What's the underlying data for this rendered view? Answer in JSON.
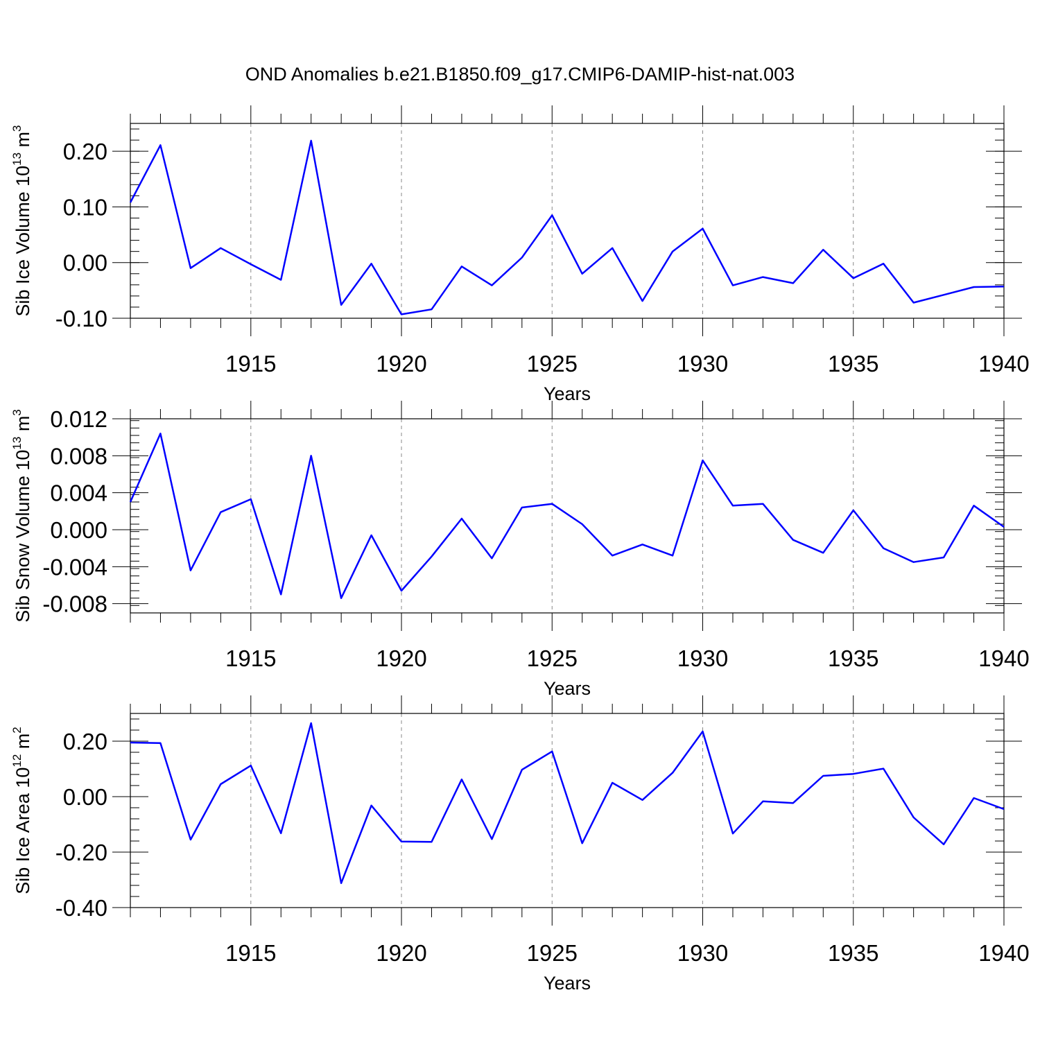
{
  "title": "OND Anomalies b.e21.B1850.f09_g17.CMIP6-DAMIP-hist-nat.003",
  "line_color": "#0000ff",
  "chart_data": [
    {
      "type": "line",
      "ylabel": {
        "main": "Sib Ice Volume 10",
        "exp": "13",
        "unit": " m",
        "unit_exp": "3"
      },
      "xlabel": "Years",
      "xlim": [
        1911,
        1940
      ],
      "ylim": [
        -0.1,
        0.25
      ],
      "yticks": [
        -0.1,
        0.0,
        0.1,
        0.2
      ],
      "ytick_labels": [
        "-0.10",
        "0.00",
        "0.10",
        "0.20"
      ],
      "xticks": [
        1915,
        1920,
        1925,
        1930,
        1935,
        1940
      ],
      "xtick_labels": [
        "1915",
        "1920",
        "1925",
        "1930",
        "1935",
        "1940"
      ],
      "grid": "vertical dashed at labeled years",
      "series": [
        {
          "x": [
            1911,
            1912,
            1913,
            1914,
            1915,
            1916,
            1917,
            1918,
            1919,
            1920,
            1921,
            1922,
            1923,
            1924,
            1925,
            1926,
            1927,
            1928,
            1929,
            1930,
            1931,
            1932,
            1933,
            1934,
            1935,
            1936,
            1937,
            1938,
            1939,
            1940
          ],
          "values": [
            0.108,
            0.211,
            -0.01,
            0.026,
            -0.003,
            -0.031,
            0.219,
            -0.076,
            -0.002,
            -0.093,
            -0.084,
            -0.007,
            -0.041,
            0.009,
            0.085,
            -0.02,
            0.026,
            -0.069,
            0.02,
            0.061,
            -0.041,
            -0.026,
            -0.037,
            0.023,
            -0.028,
            -0.002,
            -0.072,
            -0.058,
            -0.044,
            -0.043
          ]
        }
      ]
    },
    {
      "type": "line",
      "ylabel": {
        "main": "Sib Snow Volume 10",
        "exp": "13",
        "unit": " m",
        "unit_exp": "3"
      },
      "xlabel": "Years",
      "xlim": [
        1911,
        1940
      ],
      "ylim": [
        -0.009,
        0.012
      ],
      "yticks": [
        -0.008,
        -0.004,
        0.0,
        0.004,
        0.008,
        0.012
      ],
      "ytick_labels": [
        "-0.008",
        "-0.004",
        "0.000",
        "0.004",
        "0.008",
        "0.012"
      ],
      "xticks": [
        1915,
        1920,
        1925,
        1930,
        1935,
        1940
      ],
      "xtick_labels": [
        "1915",
        "1920",
        "1925",
        "1930",
        "1935",
        "1940"
      ],
      "grid": "vertical dashed at labeled years",
      "series": [
        {
          "x": [
            1911,
            1912,
            1913,
            1914,
            1915,
            1916,
            1917,
            1918,
            1919,
            1920,
            1921,
            1922,
            1923,
            1924,
            1925,
            1926,
            1927,
            1928,
            1929,
            1930,
            1931,
            1932,
            1933,
            1934,
            1935,
            1936,
            1937,
            1938,
            1939,
            1940
          ],
          "values": [
            0.003,
            0.0104,
            -0.0044,
            0.0019,
            0.0033,
            -0.007,
            0.008,
            -0.0074,
            -0.0006,
            -0.0066,
            -0.0029,
            0.0012,
            -0.0031,
            0.0024,
            0.0028,
            0.0006,
            -0.0028,
            -0.0016,
            -0.0028,
            0.0075,
            0.0026,
            0.0028,
            -0.0011,
            -0.0025,
            0.0021,
            -0.002,
            -0.0035,
            -0.003,
            0.0026,
            0.0003
          ]
        }
      ]
    },
    {
      "type": "line",
      "ylabel": {
        "main": "Sib Ice Area 10",
        "exp": "12",
        "unit": " m",
        "unit_exp": "2"
      },
      "xlabel": "Years",
      "xlim": [
        1911,
        1940
      ],
      "ylim": [
        -0.4,
        0.3
      ],
      "yticks": [
        -0.4,
        -0.2,
        0.0,
        0.2
      ],
      "ytick_labels": [
        "-0.40",
        "-0.20",
        "0.00",
        "0.20"
      ],
      "xticks": [
        1915,
        1920,
        1925,
        1930,
        1935,
        1940
      ],
      "xtick_labels": [
        "1915",
        "1920",
        "1925",
        "1930",
        "1935",
        "1940"
      ],
      "grid": "vertical dashed at labeled years",
      "series": [
        {
          "x": [
            1911,
            1912,
            1913,
            1914,
            1915,
            1916,
            1917,
            1918,
            1919,
            1920,
            1921,
            1922,
            1923,
            1924,
            1925,
            1926,
            1927,
            1928,
            1929,
            1930,
            1931,
            1932,
            1933,
            1934,
            1935,
            1936,
            1937,
            1938,
            1939,
            1940
          ],
          "values": [
            0.195,
            0.193,
            -0.155,
            0.045,
            0.112,
            -0.132,
            0.265,
            -0.312,
            -0.032,
            -0.162,
            -0.163,
            0.062,
            -0.153,
            0.097,
            0.163,
            -0.168,
            0.05,
            -0.012,
            0.086,
            0.235,
            -0.133,
            -0.017,
            -0.023,
            0.075,
            0.082,
            0.101,
            -0.075,
            -0.172,
            -0.005,
            -0.045
          ]
        }
      ]
    }
  ]
}
